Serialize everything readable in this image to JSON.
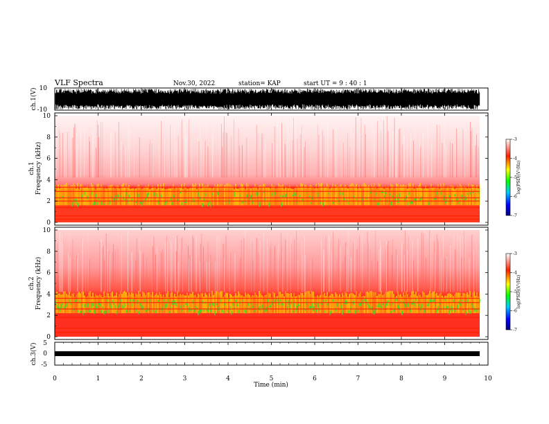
{
  "header": {
    "title": "VLF Spectra",
    "date": "Nov.30, 2022",
    "station": "station= KAP",
    "start": "start  UT  =   9 : 40 : 1"
  },
  "chart_data": [
    {
      "type": "line",
      "panel": "ch1-waveform",
      "ylabel": "ch.1(V)",
      "ylim": [
        -10,
        10
      ],
      "yticks": [
        "10",
        "-10"
      ],
      "xlim": [
        0,
        10
      ]
    },
    {
      "type": "heatmap",
      "panel": "ch1-spectrogram",
      "ylabel": "ch.1\nFrequency (kHz)",
      "ylabel_lines": [
        "ch.1",
        "Frequency  (kHz)"
      ],
      "ylim": [
        0,
        10
      ],
      "yticks": [
        "10",
        "8",
        "6",
        "4",
        "2",
        "0"
      ],
      "xlim": [
        0,
        10
      ],
      "colorbar": {
        "label": "log(PSD)(V²/Hz)",
        "range": [
          -7,
          -3
        ],
        "ticks": [
          "-3",
          "-4",
          "-5",
          "-6",
          "-7"
        ],
        "colors": [
          "#000080",
          "#0000ff",
          "#00c8ff",
          "#00ff00",
          "#ffff00",
          "#ff2000",
          "#ffffff"
        ]
      },
      "bands_khz": [
        0.3,
        0.6,
        1.4,
        2.0,
        2.3,
        2.9,
        3.3
      ]
    },
    {
      "type": "heatmap",
      "panel": "ch2-spectrogram",
      "ylabel_lines": [
        "ch.2",
        "Frequency  (kHz)"
      ],
      "ylim": [
        0,
        10
      ],
      "yticks": [
        "10",
        "8",
        "6",
        "4",
        "2",
        "0"
      ],
      "xlim": [
        0,
        10
      ],
      "colorbar": {
        "label": "log(PSD)(V²/Hz)",
        "range": [
          -7,
          -3
        ],
        "ticks": [
          "-3",
          "-4",
          "-5",
          "-6",
          "-7"
        ],
        "colors": [
          "#000080",
          "#0000ff",
          "#00c8ff",
          "#00ff00",
          "#ffff00",
          "#ff2000",
          "#ffffff"
        ]
      },
      "bands_khz": [
        0.4,
        0.8,
        1.8,
        2.6,
        3.2,
        3.6
      ]
    },
    {
      "type": "line",
      "panel": "ch3-waveform",
      "ylabel": "ch.3(V)",
      "ylim": [
        -5,
        5
      ],
      "yticks": [
        "5",
        "0",
        "-5"
      ],
      "xlim": [
        0,
        10
      ],
      "xlabel": "Time  (min)",
      "xticks": [
        "0",
        "1",
        "2",
        "3",
        "4",
        "5",
        "6",
        "7",
        "8",
        "9",
        "10"
      ]
    }
  ]
}
